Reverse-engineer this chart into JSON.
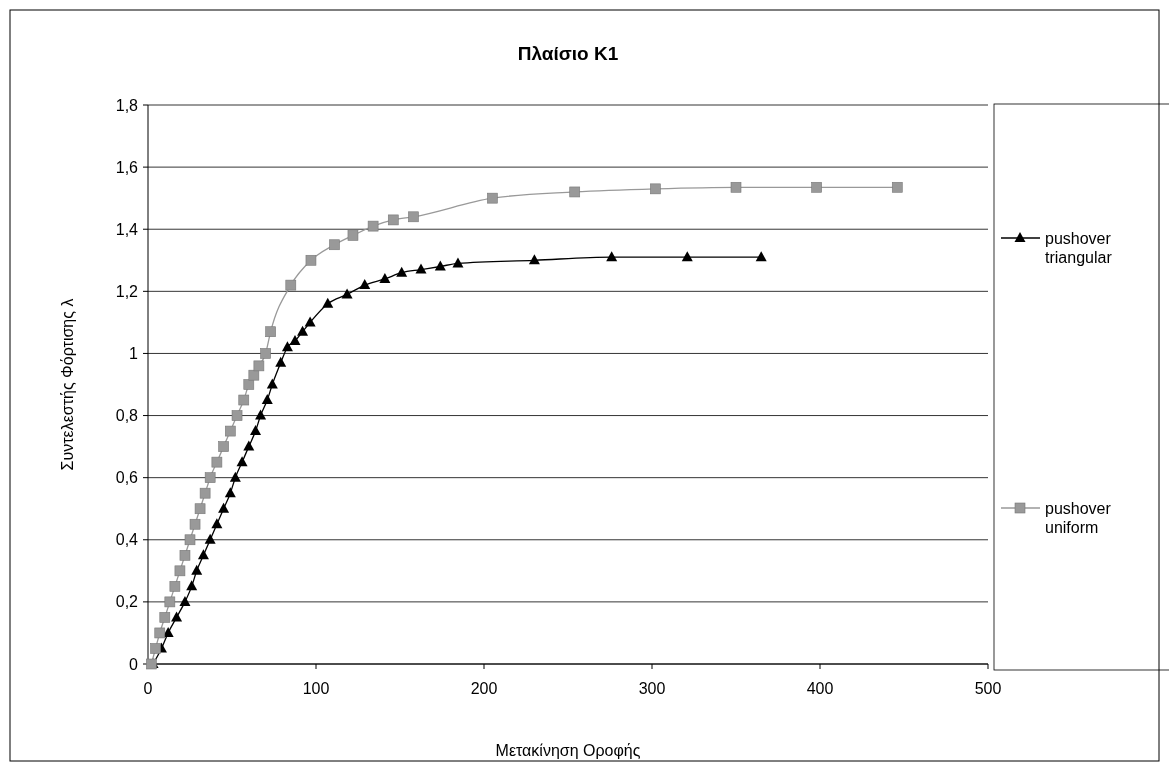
{
  "chart_data": {
    "type": "line",
    "title": "Πλαίσιο Κ1",
    "xlabel": "Μετακίνηση Οροφής",
    "ylabel": "Συντελεστής Φόρτισης λ",
    "xlim": [
      0,
      500
    ],
    "xticks": [
      0,
      100,
      200,
      300,
      400,
      500
    ],
    "ylim": [
      0,
      1.8
    ],
    "yticks": [
      0,
      {
        "value": 0.2,
        "label": "0,2"
      },
      {
        "value": 0.4,
        "label": "0,4"
      },
      {
        "value": 0.6,
        "label": "0,6"
      },
      {
        "value": 0.8,
        "label": "0,8"
      },
      1,
      {
        "value": 1.2,
        "label": "1,2"
      },
      {
        "value": 1.4,
        "label": "1,4"
      },
      {
        "value": 1.6,
        "label": "1,6"
      },
      {
        "value": 1.8,
        "label": "1,8"
      }
    ],
    "grid": "y",
    "legend": "right",
    "series": [
      {
        "name": "pushover triangular",
        "color": "#000000",
        "marker": "triangle",
        "x": [
          3,
          8,
          12,
          17,
          22,
          26,
          29,
          33,
          37,
          41,
          45,
          49,
          52,
          56,
          60,
          64,
          67,
          71,
          74,
          79,
          83,
          87.5,
          92,
          96.5,
          107,
          118.5,
          129,
          141,
          151,
          162.5,
          174,
          184.5,
          230,
          276,
          321,
          365
        ],
        "values": [
          0,
          0.05,
          0.1,
          0.15,
          0.2,
          0.25,
          0.3,
          0.35,
          0.4,
          0.45,
          0.5,
          0.55,
          0.6,
          0.65,
          0.7,
          0.75,
          0.8,
          0.85,
          0.9,
          0.97,
          1.02,
          1.04,
          1.07,
          1.1,
          1.16,
          1.19,
          1.22,
          1.24,
          1.26,
          1.27,
          1.28,
          1.29,
          1.3,
          1.31,
          1.31,
          1.31
        ]
      },
      {
        "name": "pushover uniform",
        "color": "#999999",
        "marker": "square",
        "x": [
          2,
          4.5,
          7,
          10,
          13,
          16,
          19,
          22,
          25,
          28,
          31,
          34,
          37,
          41,
          45,
          49,
          53,
          57,
          60,
          63,
          66,
          70,
          73,
          85,
          97,
          111,
          122,
          134,
          146,
          158,
          205,
          254,
          302,
          350,
          398,
          446
        ],
        "values": [
          0,
          0.05,
          0.1,
          0.15,
          0.2,
          0.25,
          0.3,
          0.35,
          0.4,
          0.45,
          0.5,
          0.55,
          0.6,
          0.65,
          0.7,
          0.75,
          0.8,
          0.85,
          0.9,
          0.93,
          0.96,
          1.0,
          1.07,
          1.22,
          1.3,
          1.35,
          1.38,
          1.41,
          1.43,
          1.44,
          1.5,
          1.52,
          1.53,
          1.535,
          1.535,
          1.535
        ]
      }
    ]
  }
}
